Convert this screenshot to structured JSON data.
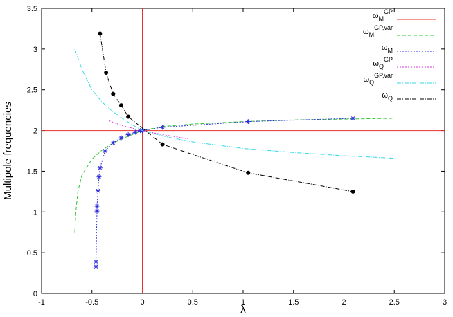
{
  "chart_data": {
    "type": "line",
    "xlabel": "λ",
    "ylabel": "Multipole frequencies",
    "xlim": [
      -1,
      3
    ],
    "ylim": [
      0,
      3.5
    ],
    "xticks": [
      -1,
      -0.5,
      0,
      0.5,
      1,
      1.5,
      2,
      2.5,
      3
    ],
    "yticks": [
      0,
      0.5,
      1,
      1.5,
      2,
      2.5,
      3,
      3.5
    ],
    "vline": 0,
    "vline_color": "#e8312a",
    "legend": "upper right",
    "series": [
      {
        "name": [
          "ω",
          "M",
          "GP"
        ],
        "color": "#e8312a",
        "dash": "solid",
        "marker": null,
        "x": [
          -1,
          3
        ],
        "values": [
          2,
          2
        ]
      },
      {
        "name": [
          "ω",
          "M",
          "GP,var"
        ],
        "color": "#2fc52f",
        "dash": "dashed",
        "marker": null,
        "x": [
          -0.67,
          -0.66,
          -0.64,
          -0.6,
          -0.5,
          -0.4,
          -0.3,
          -0.2,
          -0.1,
          0,
          0.2,
          0.5,
          1,
          1.5,
          2,
          2.5
        ],
        "values": [
          0.75,
          1.0,
          1.25,
          1.45,
          1.65,
          1.76,
          1.84,
          1.9,
          1.95,
          2.0,
          2.05,
          2.08,
          2.11,
          2.13,
          2.14,
          2.15
        ]
      },
      {
        "name": [
          "ω",
          "M",
          null
        ],
        "color": "#2e2ee0",
        "dash": "dotted",
        "marker": "star",
        "x": [
          -0.46,
          -0.46,
          -0.45,
          -0.45,
          -0.44,
          -0.43,
          -0.42,
          -0.37,
          -0.29,
          -0.21,
          -0.14,
          -0.07,
          -0.02,
          0,
          0.2,
          1.05,
          2.09
        ],
        "values": [
          0.33,
          0.39,
          1.01,
          1.07,
          1.26,
          1.43,
          1.54,
          1.75,
          1.85,
          1.91,
          1.95,
          1.98,
          2.0,
          2.0,
          2.04,
          2.11,
          2.15
        ]
      },
      {
        "name": [
          "ω",
          "Q",
          "GP"
        ],
        "color": "#e030e0",
        "dash": "dotted",
        "marker": null,
        "x": [
          -0.33,
          -0.2,
          -0.1,
          0,
          0.2,
          0.45
        ],
        "values": [
          2.12,
          2.06,
          2.03,
          2.0,
          1.95,
          1.9
        ]
      },
      {
        "name": [
          "ω",
          "Q",
          "GP,var"
        ],
        "color": "#30d8e8",
        "dash": "dashdot",
        "marker": null,
        "x": [
          -0.67,
          -0.6,
          -0.5,
          -0.4,
          -0.3,
          -0.2,
          -0.1,
          0,
          0.25,
          0.5,
          1,
          1.5,
          2,
          2.5
        ],
        "values": [
          3.0,
          2.75,
          2.5,
          2.35,
          2.24,
          2.15,
          2.07,
          2.0,
          1.92,
          1.86,
          1.78,
          1.73,
          1.69,
          1.66
        ]
      },
      {
        "name": [
          "ω",
          "Q",
          null
        ],
        "color": "#000000",
        "dash": "dashdot",
        "marker": "circle",
        "x": [
          -0.42,
          -0.36,
          -0.29,
          -0.21,
          -0.14,
          0.2,
          1.05,
          2.09
        ],
        "values": [
          3.19,
          2.71,
          2.45,
          2.31,
          2.17,
          1.83,
          1.48,
          1.25
        ]
      }
    ]
  }
}
